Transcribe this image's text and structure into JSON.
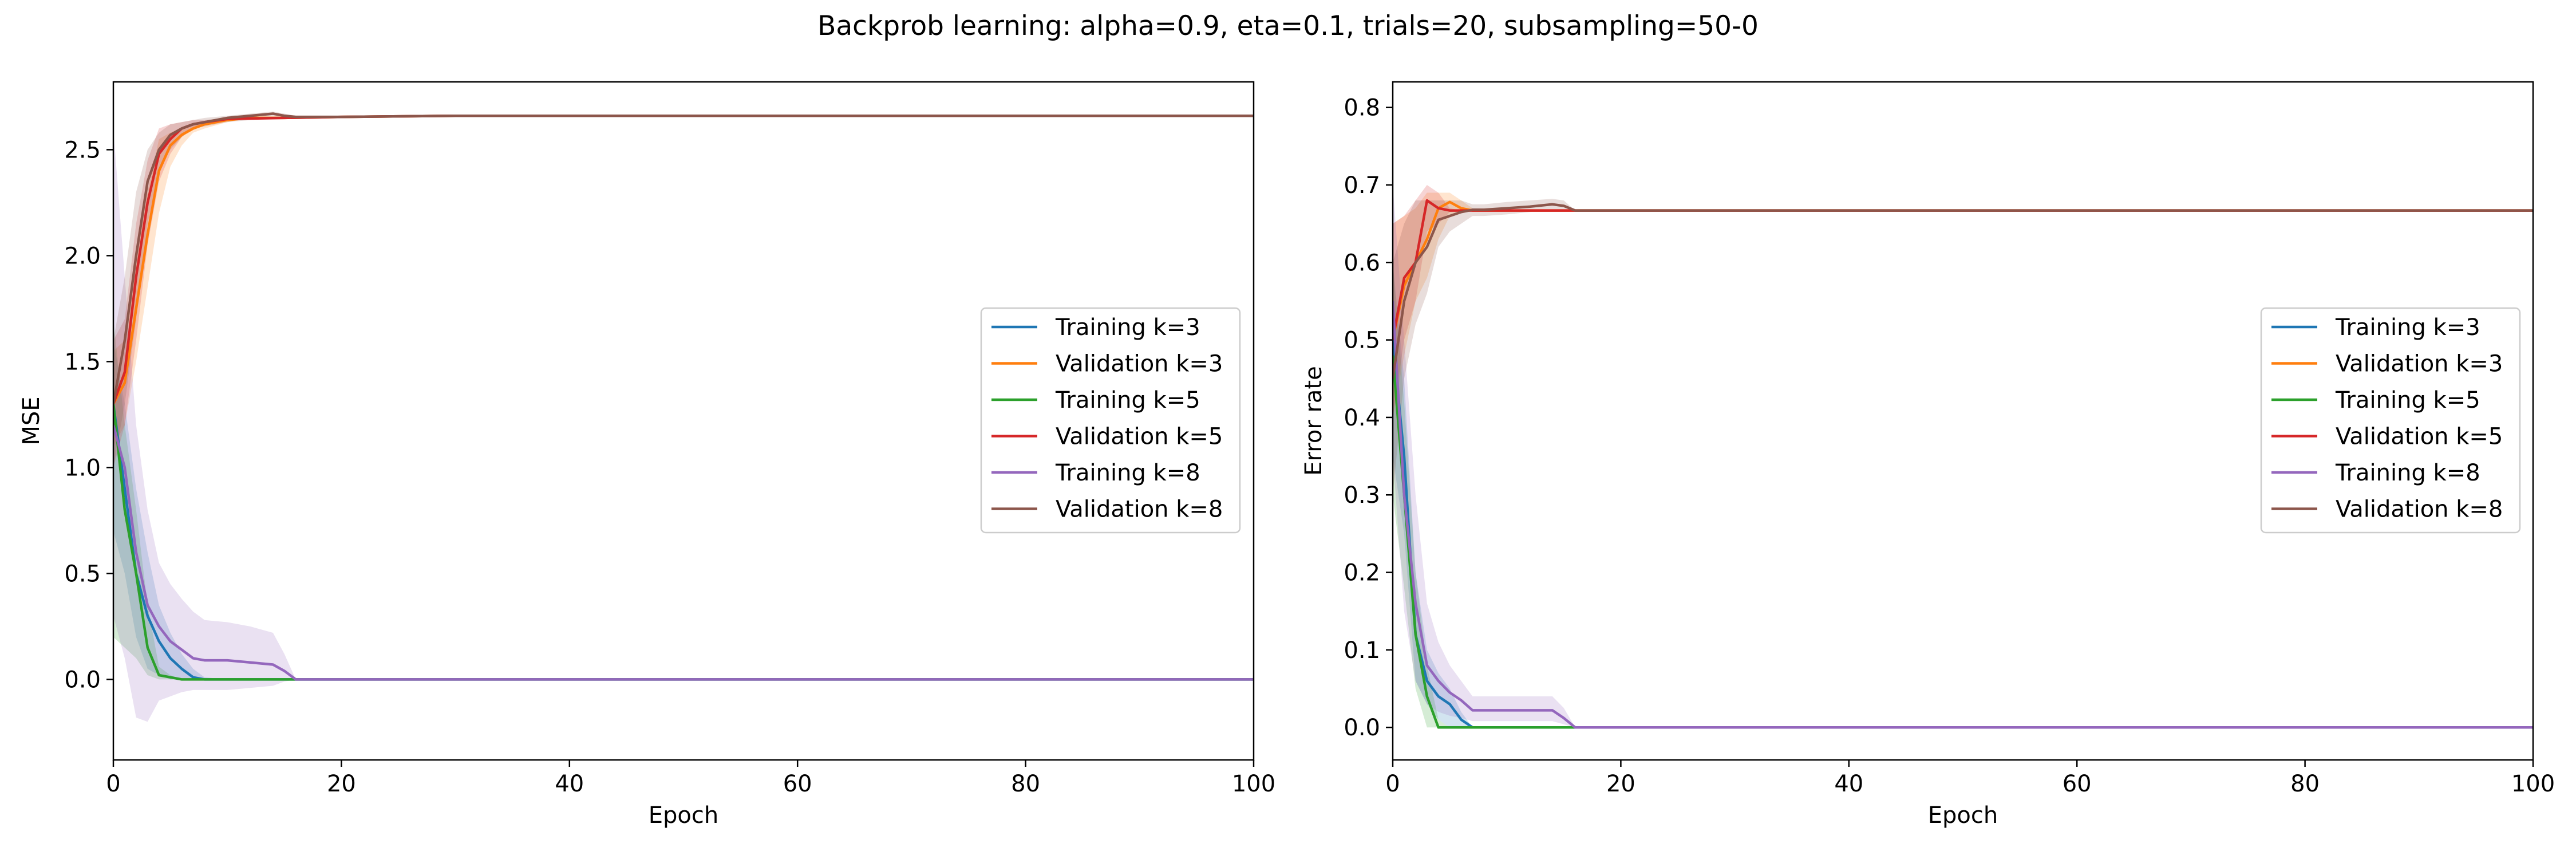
{
  "figure": {
    "suptitle": "Backprob learning: alpha=0.9, eta=0.1, trials=20, subsampling=50-0"
  },
  "colors": {
    "k3_train": "#1f77b4",
    "k3_val": "#ff7f0e",
    "k5_train": "#2ca02c",
    "k5_val": "#d62728",
    "k8_train": "#9467bd",
    "k8_val": "#8c564b"
  },
  "chart_data": [
    {
      "type": "line",
      "xlabel": "Epoch",
      "ylabel": "MSE",
      "xlim": [
        0,
        100
      ],
      "ylim": [
        -0.38,
        2.82
      ],
      "xticks": [
        0,
        20,
        40,
        60,
        80,
        100
      ],
      "xtick_labels": [
        "0",
        "20",
        "40",
        "60",
        "80",
        "100"
      ],
      "yticks": [
        0.0,
        0.5,
        1.0,
        1.5,
        2.0,
        2.5
      ],
      "ytick_labels": [
        "0.0",
        "0.5",
        "1.0",
        "1.5",
        "2.0",
        "2.5"
      ],
      "grid": false,
      "legend_position": "center right",
      "series": [
        {
          "name": "Training k=3",
          "color": "#1f77b4",
          "x": [
            0,
            1,
            2,
            3,
            4,
            5,
            6,
            7,
            8,
            10,
            15,
            20,
            100
          ],
          "y": [
            1.3,
            0.9,
            0.5,
            0.3,
            0.18,
            0.1,
            0.05,
            0.01,
            0.0,
            0.0,
            0.0,
            0.0,
            0.0
          ],
          "band_upper": [
            1.6,
            1.3,
            0.9,
            0.6,
            0.35,
            0.22,
            0.12,
            0.05,
            0.01,
            0.0,
            0.0,
            0.0,
            0.0
          ],
          "band_lower": [
            0.7,
            0.5,
            0.2,
            0.05,
            0.02,
            0.0,
            0.0,
            0.0,
            0.0,
            0.0,
            0.0,
            0.0,
            0.0
          ]
        },
        {
          "name": "Validation k=3",
          "color": "#ff7f0e",
          "x": [
            0,
            1,
            2,
            3,
            4,
            5,
            6,
            7,
            8,
            10,
            12,
            15,
            20,
            30,
            100
          ],
          "y": [
            1.3,
            1.4,
            1.75,
            2.1,
            2.4,
            2.52,
            2.57,
            2.6,
            2.62,
            2.64,
            2.65,
            2.65,
            2.655,
            2.66,
            2.66
          ],
          "band_upper": [
            1.55,
            1.6,
            2.0,
            2.3,
            2.55,
            2.58,
            2.6,
            2.62,
            2.63,
            2.645,
            2.65,
            2.65,
            2.655,
            2.66,
            2.66
          ],
          "band_lower": [
            1.1,
            1.2,
            1.5,
            1.85,
            2.2,
            2.42,
            2.52,
            2.58,
            2.6,
            2.63,
            2.65,
            2.65,
            2.655,
            2.66,
            2.66
          ]
        },
        {
          "name": "Training k=5",
          "color": "#2ca02c",
          "x": [
            0,
            1,
            2,
            3,
            4,
            5,
            6,
            8,
            10,
            15,
            100
          ],
          "y": [
            1.3,
            0.8,
            0.5,
            0.15,
            0.02,
            0.01,
            0.0,
            0.0,
            0.0,
            0.0,
            0.0
          ],
          "band_upper": [
            1.7,
            1.2,
            0.8,
            0.35,
            0.06,
            0.02,
            0.0,
            0.0,
            0.0,
            0.0,
            0.0
          ],
          "band_lower": [
            0.2,
            0.15,
            0.1,
            0.02,
            0.0,
            0.0,
            0.0,
            0.0,
            0.0,
            0.0,
            0.0
          ]
        },
        {
          "name": "Validation k=5",
          "color": "#d62728",
          "x": [
            0,
            1,
            2,
            3,
            4,
            5,
            6,
            7,
            8,
            10,
            15,
            20,
            30,
            100
          ],
          "y": [
            1.3,
            1.45,
            1.9,
            2.25,
            2.48,
            2.55,
            2.6,
            2.62,
            2.63,
            2.645,
            2.65,
            2.655,
            2.66,
            2.66
          ],
          "band_upper": [
            1.6,
            1.7,
            2.15,
            2.45,
            2.6,
            2.62,
            2.63,
            2.64,
            2.64,
            2.65,
            2.655,
            2.655,
            2.66,
            2.66
          ],
          "band_lower": [
            1.0,
            1.2,
            1.6,
            2.05,
            2.35,
            2.48,
            2.56,
            2.6,
            2.62,
            2.64,
            2.65,
            2.655,
            2.66,
            2.66
          ]
        },
        {
          "name": "Training k=8",
          "color": "#9467bd",
          "x": [
            0,
            1,
            2,
            3,
            4,
            5,
            6,
            7,
            8,
            10,
            12,
            14,
            15,
            16,
            20,
            100
          ],
          "y": [
            1.2,
            1.0,
            0.6,
            0.35,
            0.25,
            0.18,
            0.14,
            0.1,
            0.09,
            0.09,
            0.08,
            0.07,
            0.04,
            0.0,
            0.0,
            0.0
          ],
          "band_upper": [
            2.6,
            1.9,
            1.2,
            0.8,
            0.55,
            0.45,
            0.38,
            0.32,
            0.28,
            0.27,
            0.25,
            0.22,
            0.12,
            0.0,
            0.0,
            0.0
          ],
          "band_lower": [
            0.3,
            0.1,
            -0.18,
            -0.2,
            -0.1,
            -0.08,
            -0.06,
            -0.05,
            -0.05,
            -0.05,
            -0.04,
            -0.03,
            -0.01,
            0.0,
            0.0,
            0.0
          ]
        },
        {
          "name": "Validation k=8",
          "color": "#8c564b",
          "x": [
            0,
            1,
            2,
            3,
            4,
            5,
            6,
            7,
            8,
            10,
            12,
            14,
            15,
            16,
            20,
            30,
            100
          ],
          "y": [
            1.3,
            1.6,
            2.0,
            2.35,
            2.5,
            2.57,
            2.6,
            2.62,
            2.63,
            2.65,
            2.66,
            2.67,
            2.66,
            2.655,
            2.655,
            2.66,
            2.66
          ],
          "band_upper": [
            1.6,
            1.9,
            2.3,
            2.5,
            2.58,
            2.62,
            2.63,
            2.64,
            2.65,
            2.66,
            2.67,
            2.68,
            2.67,
            2.66,
            2.66,
            2.66,
            2.66
          ],
          "band_lower": [
            1.0,
            1.3,
            1.7,
            2.15,
            2.4,
            2.5,
            2.56,
            2.6,
            2.61,
            2.63,
            2.64,
            2.65,
            2.65,
            2.65,
            2.655,
            2.66,
            2.66
          ]
        }
      ]
    },
    {
      "type": "line",
      "xlabel": "Epoch",
      "ylabel": "Error rate",
      "xlim": [
        0,
        100
      ],
      "ylim": [
        -0.042,
        0.833
      ],
      "xticks": [
        0,
        20,
        40,
        60,
        80,
        100
      ],
      "xtick_labels": [
        "0",
        "20",
        "40",
        "60",
        "80",
        "100"
      ],
      "yticks": [
        0.0,
        0.1,
        0.2,
        0.3,
        0.4,
        0.5,
        0.6,
        0.7,
        0.8
      ],
      "ytick_labels": [
        "0.0",
        "0.1",
        "0.2",
        "0.3",
        "0.4",
        "0.5",
        "0.6",
        "0.7",
        "0.8"
      ],
      "grid": false,
      "legend_position": "center right",
      "series": [
        {
          "name": "Training k=3",
          "color": "#1f77b4",
          "x": [
            0,
            1,
            2,
            3,
            4,
            5,
            6,
            7,
            8,
            10,
            100
          ],
          "y": [
            0.5,
            0.35,
            0.12,
            0.06,
            0.04,
            0.03,
            0.01,
            0.0,
            0.0,
            0.0,
            0.0
          ],
          "band_upper": [
            0.6,
            0.45,
            0.2,
            0.1,
            0.07,
            0.05,
            0.02,
            0.0,
            0.0,
            0.0,
            0.0
          ],
          "band_lower": [
            0.35,
            0.25,
            0.06,
            0.03,
            0.01,
            0.0,
            0.0,
            0.0,
            0.0,
            0.0,
            0.0
          ]
        },
        {
          "name": "Validation k=3",
          "color": "#ff7f0e",
          "x": [
            0,
            1,
            2,
            3,
            4,
            5,
            6,
            7,
            8,
            10,
            15,
            20,
            100
          ],
          "y": [
            0.5,
            0.57,
            0.6,
            0.63,
            0.67,
            0.678,
            0.67,
            0.667,
            0.667,
            0.667,
            0.667,
            0.667,
            0.667
          ],
          "band_upper": [
            0.65,
            0.66,
            0.67,
            0.69,
            0.69,
            0.69,
            0.68,
            0.67,
            0.667,
            0.667,
            0.667,
            0.667,
            0.667
          ],
          "band_lower": [
            0.4,
            0.48,
            0.55,
            0.58,
            0.63,
            0.66,
            0.665,
            0.667,
            0.667,
            0.667,
            0.667,
            0.667,
            0.667
          ]
        },
        {
          "name": "Training k=5",
          "color": "#2ca02c",
          "x": [
            0,
            1,
            2,
            3,
            4,
            5,
            6,
            8,
            10,
            100
          ],
          "y": [
            0.48,
            0.3,
            0.12,
            0.04,
            0.0,
            0.0,
            0.0,
            0.0,
            0.0,
            0.0
          ],
          "band_upper": [
            0.6,
            0.42,
            0.2,
            0.08,
            0.01,
            0.0,
            0.0,
            0.0,
            0.0,
            0.0
          ],
          "band_lower": [
            0.3,
            0.18,
            0.05,
            0.0,
            0.0,
            0.0,
            0.0,
            0.0,
            0.0,
            0.0
          ]
        },
        {
          "name": "Validation k=5",
          "color": "#d62728",
          "x": [
            0,
            1,
            2,
            3,
            4,
            5,
            6,
            8,
            10,
            15,
            20,
            100
          ],
          "y": [
            0.5,
            0.58,
            0.6,
            0.68,
            0.67,
            0.667,
            0.667,
            0.667,
            0.667,
            0.667,
            0.667,
            0.667
          ],
          "band_upper": [
            0.65,
            0.66,
            0.68,
            0.7,
            0.69,
            0.67,
            0.667,
            0.667,
            0.667,
            0.667,
            0.667,
            0.667
          ],
          "band_lower": [
            0.4,
            0.5,
            0.55,
            0.64,
            0.65,
            0.665,
            0.667,
            0.667,
            0.667,
            0.667,
            0.667,
            0.667
          ]
        },
        {
          "name": "Training k=8",
          "color": "#9467bd",
          "x": [
            0,
            1,
            2,
            3,
            4,
            5,
            6,
            7,
            8,
            10,
            12,
            14,
            15,
            16,
            20,
            100
          ],
          "y": [
            0.55,
            0.3,
            0.16,
            0.08,
            0.06,
            0.045,
            0.035,
            0.022,
            0.022,
            0.022,
            0.022,
            0.022,
            0.012,
            0.0,
            0.0,
            0.0
          ],
          "band_upper": [
            0.7,
            0.5,
            0.3,
            0.16,
            0.11,
            0.08,
            0.06,
            0.04,
            0.04,
            0.04,
            0.04,
            0.04,
            0.025,
            0.0,
            0.0,
            0.0
          ],
          "band_lower": [
            0.35,
            0.15,
            0.06,
            0.03,
            0.02,
            0.015,
            0.012,
            0.008,
            0.008,
            0.008,
            0.008,
            0.008,
            0.004,
            0.0,
            0.0,
            0.0
          ]
        },
        {
          "name": "Validation k=8",
          "color": "#8c564b",
          "x": [
            0,
            1,
            2,
            3,
            4,
            5,
            6,
            7,
            8,
            10,
            12,
            14,
            15,
            16,
            20,
            100
          ],
          "y": [
            0.45,
            0.55,
            0.6,
            0.62,
            0.655,
            0.66,
            0.665,
            0.668,
            0.668,
            0.67,
            0.672,
            0.675,
            0.673,
            0.667,
            0.667,
            0.667
          ],
          "band_upper": [
            0.6,
            0.65,
            0.68,
            0.68,
            0.68,
            0.68,
            0.68,
            0.675,
            0.675,
            0.678,
            0.68,
            0.682,
            0.68,
            0.667,
            0.667,
            0.667
          ],
          "band_lower": [
            0.3,
            0.45,
            0.52,
            0.56,
            0.62,
            0.64,
            0.65,
            0.66,
            0.66,
            0.662,
            0.665,
            0.668,
            0.666,
            0.667,
            0.667,
            0.667
          ]
        }
      ]
    }
  ]
}
